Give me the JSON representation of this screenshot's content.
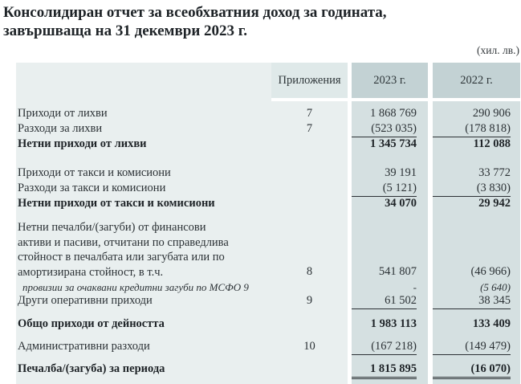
{
  "title": "Консолидиран отчет за всеобхватния доход за годината,\nзавършваща на 31 декември 2023 г.",
  "units_note": "(хил. лв.)",
  "colors": {
    "page-bg": "#ffffff",
    "body-zone": "#e9efef",
    "note-header": "#dfe9e9",
    "year-header": "#c3d2d4",
    "year-band": "#d5e0e1",
    "ink": "#2b3135",
    "ink-strong": "#1e2327",
    "rule": "#2c3135"
  },
  "table": {
    "headers": {
      "note": "Приложения",
      "y2023": "2023 г.",
      "y2022": "2022 г."
    },
    "rows": [
      {
        "label": "Приходи от лихви",
        "note": "7",
        "v2023": "1 868 769",
        "v2022": "290 906"
      },
      {
        "label": "Разходи за лихви",
        "note": "7",
        "v2023": "(523 035)",
        "v2022": "(178 818)",
        "rule": "single"
      },
      {
        "label": "Нетни приходи от лихви",
        "bold": true,
        "v2023": "1 345 734",
        "v2022": "112 088"
      },
      {
        "label": "Приходи от такси и комисиони",
        "v2023": "39 191",
        "v2022": "33 772"
      },
      {
        "label": "Разходи за такси и комисиони",
        "v2023": "(5 121)",
        "v2022": "(3 830)",
        "rule": "single"
      },
      {
        "label": "Нетни приходи от такси и комисиони",
        "bold": true,
        "v2023": "34 070",
        "v2022": "29 942"
      },
      {
        "label": "Нетни печалби/(загуби) от финансови\nактиви и пасиви, отчитани по справедлива\nстойност в печалбата или загубата или по\nамортизирана стойност, в т.ч.",
        "note": "8",
        "v2023": "541 807",
        "v2022": "(46 966)"
      },
      {
        "label": "провизии за очаквани кредитни загуби по МСФО 9",
        "italic": true,
        "v2023": "-",
        "v2022": "(5 640)"
      },
      {
        "label": "Други оперативни приходи",
        "note": "9",
        "v2023": "61 502",
        "v2022": "38 345",
        "rule": "single"
      },
      {
        "label": "Общо приходи от дейността",
        "bold": true,
        "v2023": "1 983 113",
        "v2022": "133 409"
      },
      {
        "label": "Административни разходи",
        "note": "10",
        "v2023": "(167 218)",
        "v2022": "(149 479)",
        "rule": "single"
      },
      {
        "label": "Печалба/(загуба) за периода",
        "bold": true,
        "v2023": "1 815 895",
        "v2022": "(16 070)",
        "rule": "double"
      }
    ]
  }
}
